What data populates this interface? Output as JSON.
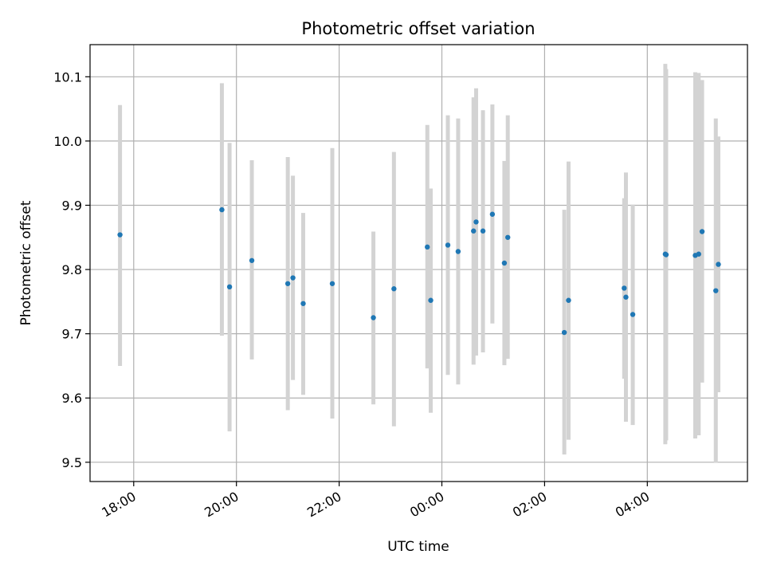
{
  "chart_data": {
    "type": "scatter",
    "title": "Photometric offset variation",
    "xlabel": "UTC time",
    "ylabel": "Photometric offset",
    "x_ticks": [
      "18:00",
      "20:00",
      "22:00",
      "00:00",
      "02:00",
      "04:00"
    ],
    "x_tick_hours": [
      18,
      20,
      22,
      24,
      26,
      28
    ],
    "xlim": [
      "17:09",
      "05:57"
    ],
    "y_ticks": [
      "9.5",
      "9.6",
      "9.7",
      "9.8",
      "9.9",
      "10.0",
      "10.1"
    ],
    "ylim": [
      9.47,
      10.15
    ],
    "grid": true,
    "colors": {
      "points": "#1f77b4",
      "error_bars": "#d3d3d3",
      "grid": "#b0b0b0"
    },
    "points": [
      {
        "time": "17:44",
        "y": 9.854,
        "lo": 9.65,
        "hi": 10.056
      },
      {
        "time": "19:43",
        "y": 9.893,
        "lo": 9.697,
        "hi": 10.09
      },
      {
        "time": "19:52",
        "y": 9.773,
        "lo": 9.548,
        "hi": 9.997
      },
      {
        "time": "20:18",
        "y": 9.814,
        "lo": 9.66,
        "hi": 9.97
      },
      {
        "time": "21:00",
        "y": 9.778,
        "lo": 9.581,
        "hi": 9.975
      },
      {
        "time": "21:06",
        "y": 9.787,
        "lo": 9.628,
        "hi": 9.946
      },
      {
        "time": "21:18",
        "y": 9.747,
        "lo": 9.605,
        "hi": 9.888
      },
      {
        "time": "21:52",
        "y": 9.778,
        "lo": 9.568,
        "hi": 9.989
      },
      {
        "time": "22:40",
        "y": 9.725,
        "lo": 9.59,
        "hi": 9.859
      },
      {
        "time": "23:04",
        "y": 9.77,
        "lo": 9.556,
        "hi": 9.983
      },
      {
        "time": "23:43",
        "y": 9.835,
        "lo": 9.646,
        "hi": 10.025
      },
      {
        "time": "23:47",
        "y": 9.752,
        "lo": 9.577,
        "hi": 9.926
      },
      {
        "time": "00:07",
        "y": 9.838,
        "lo": 9.636,
        "hi": 10.04
      },
      {
        "time": "00:19",
        "y": 9.828,
        "lo": 9.621,
        "hi": 10.035
      },
      {
        "time": "00:37",
        "y": 9.86,
        "lo": 9.652,
        "hi": 10.068
      },
      {
        "time": "00:40",
        "y": 9.874,
        "lo": 9.666,
        "hi": 10.082
      },
      {
        "time": "00:48",
        "y": 9.86,
        "lo": 9.671,
        "hi": 10.048
      },
      {
        "time": "00:59",
        "y": 9.886,
        "lo": 9.716,
        "hi": 10.057
      },
      {
        "time": "01:13",
        "y": 9.81,
        "lo": 9.651,
        "hi": 9.969
      },
      {
        "time": "01:17",
        "y": 9.85,
        "lo": 9.661,
        "hi": 10.04
      },
      {
        "time": "02:23",
        "y": 9.702,
        "lo": 9.512,
        "hi": 9.893
      },
      {
        "time": "02:28",
        "y": 9.752,
        "lo": 9.535,
        "hi": 9.968
      },
      {
        "time": "03:33",
        "y": 9.771,
        "lo": 9.63,
        "hi": 9.911
      },
      {
        "time": "03:35",
        "y": 9.757,
        "lo": 9.563,
        "hi": 9.951
      },
      {
        "time": "03:43",
        "y": 9.73,
        "lo": 9.558,
        "hi": 9.901
      },
      {
        "time": "04:21",
        "y": 9.824,
        "lo": 9.528,
        "hi": 10.12
      },
      {
        "time": "04:22",
        "y": 9.823,
        "lo": 9.534,
        "hi": 10.112
      },
      {
        "time": "04:56",
        "y": 9.822,
        "lo": 9.537,
        "hi": 10.107
      },
      {
        "time": "05:00",
        "y": 9.824,
        "lo": 9.542,
        "hi": 10.106
      },
      {
        "time": "05:04",
        "y": 9.859,
        "lo": 9.624,
        "hi": 10.095
      },
      {
        "time": "05:20",
        "y": 9.767,
        "lo": 9.499,
        "hi": 10.035
      },
      {
        "time": "05:23",
        "y": 9.808,
        "lo": 9.609,
        "hi": 10.007
      }
    ]
  }
}
